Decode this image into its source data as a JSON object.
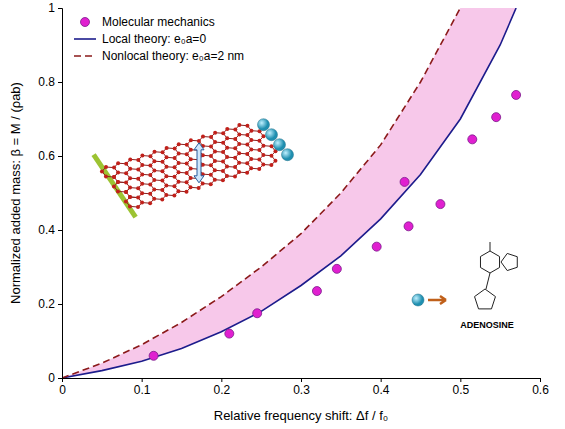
{
  "chart_data": {
    "type": "scatter",
    "x_label": "Relative frequency shift:  Δf / f₀",
    "y_label": "Normalized added mass:  β = M / (ρab)",
    "xlim": [
      0,
      0.6
    ],
    "ylim": [
      0,
      1
    ],
    "xticks": [
      0,
      0.1,
      0.2,
      0.3,
      0.4,
      0.5,
      0.6
    ],
    "yticks": [
      0,
      0.2,
      0.4,
      0.6,
      0.8,
      1
    ],
    "legend": "upper left",
    "annotations": [
      "ADENOSINE"
    ],
    "series": [
      {
        "name": "Molecular mechanics",
        "type": "scatter",
        "marker": "circle",
        "color": "#e020d0",
        "x": [
          0.115,
          0.21,
          0.245,
          0.32,
          0.345,
          0.395,
          0.435,
          0.43,
          0.475,
          0.515,
          0.545,
          0.57
        ],
        "values": [
          0.06,
          0.12,
          0.175,
          0.235,
          0.295,
          0.355,
          0.41,
          0.53,
          0.47,
          0.645,
          0.705,
          0.765
        ]
      },
      {
        "name": "Local theory: e₀a=0",
        "type": "line",
        "line_style": "solid",
        "color": "#1c1c8c",
        "x": [
          0,
          0.05,
          0.1,
          0.15,
          0.2,
          0.25,
          0.3,
          0.35,
          0.4,
          0.45,
          0.5,
          0.55,
          0.57
        ],
        "values": [
          0,
          0.02,
          0.045,
          0.08,
          0.125,
          0.18,
          0.25,
          0.33,
          0.43,
          0.55,
          0.7,
          0.9,
          1.0
        ]
      },
      {
        "name": "Nonlocal theory: e₀a=2 nm",
        "type": "line",
        "line_style": "dashed",
        "color": "#8b1a1a",
        "x": [
          0,
          0.05,
          0.1,
          0.15,
          0.2,
          0.25,
          0.3,
          0.35,
          0.4,
          0.45,
          0.5
        ],
        "values": [
          0,
          0.04,
          0.09,
          0.15,
          0.22,
          0.3,
          0.39,
          0.5,
          0.63,
          0.8,
          1.0
        ]
      }
    ]
  }
}
